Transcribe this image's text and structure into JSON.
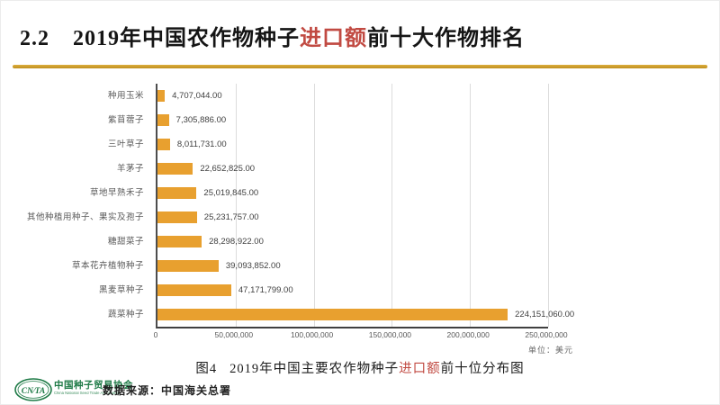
{
  "title": {
    "number": "2.2",
    "before_highlight": "2019年中国农作物种子",
    "highlight": "进口额",
    "after_highlight": "前十大作物排名"
  },
  "chart_data": {
    "type": "bar",
    "orientation": "horizontal",
    "categories": [
      "种用玉米",
      "紫苜蓿子",
      "三叶草子",
      "羊茅子",
      "草地早熟禾子",
      "其他种植用种子、果实及孢子",
      "糖甜菜子",
      "草本花卉植物种子",
      "黑麦草种子",
      "蔬菜种子"
    ],
    "values": [
      4707044,
      7305886,
      8011731,
      22652825,
      25019845,
      25231757,
      28298922,
      39093852,
      47171799,
      224151060
    ],
    "value_labels": [
      "4,707,044.00",
      "7,305,886.00",
      "8,011,731.00",
      "22,652,825.00",
      "25,019,845.00",
      "25,231,757.00",
      "28,298,922.00",
      "39,093,852.00",
      "47,171,799.00",
      "224,151,060.00"
    ],
    "xlim": [
      0,
      250000000
    ],
    "x_ticks": [
      "0",
      "50,000,000",
      "100,000,000",
      "150,000,000",
      "200,000,000",
      "250,000,000"
    ],
    "grid": true,
    "legend": false,
    "unit_note": "单位：美元",
    "bar_color": "#E8A02F"
  },
  "caption": {
    "figure_label": "图4",
    "before_highlight": "2019年中国主要农作物种子",
    "highlight": "进口额",
    "after_highlight": "前十位分布图"
  },
  "footer": {
    "logo_text": "CN∕TA",
    "org_cn": "中国种子贸易协会",
    "org_en": "China National Seed Trade Association",
    "source": "数据来源：中国海关总署"
  },
  "colors": {
    "accent_red": "#C14A42",
    "gold_rule": "#CE9E28",
    "bar_orange": "#E8A02F",
    "logo_green": "#1E7A46"
  }
}
